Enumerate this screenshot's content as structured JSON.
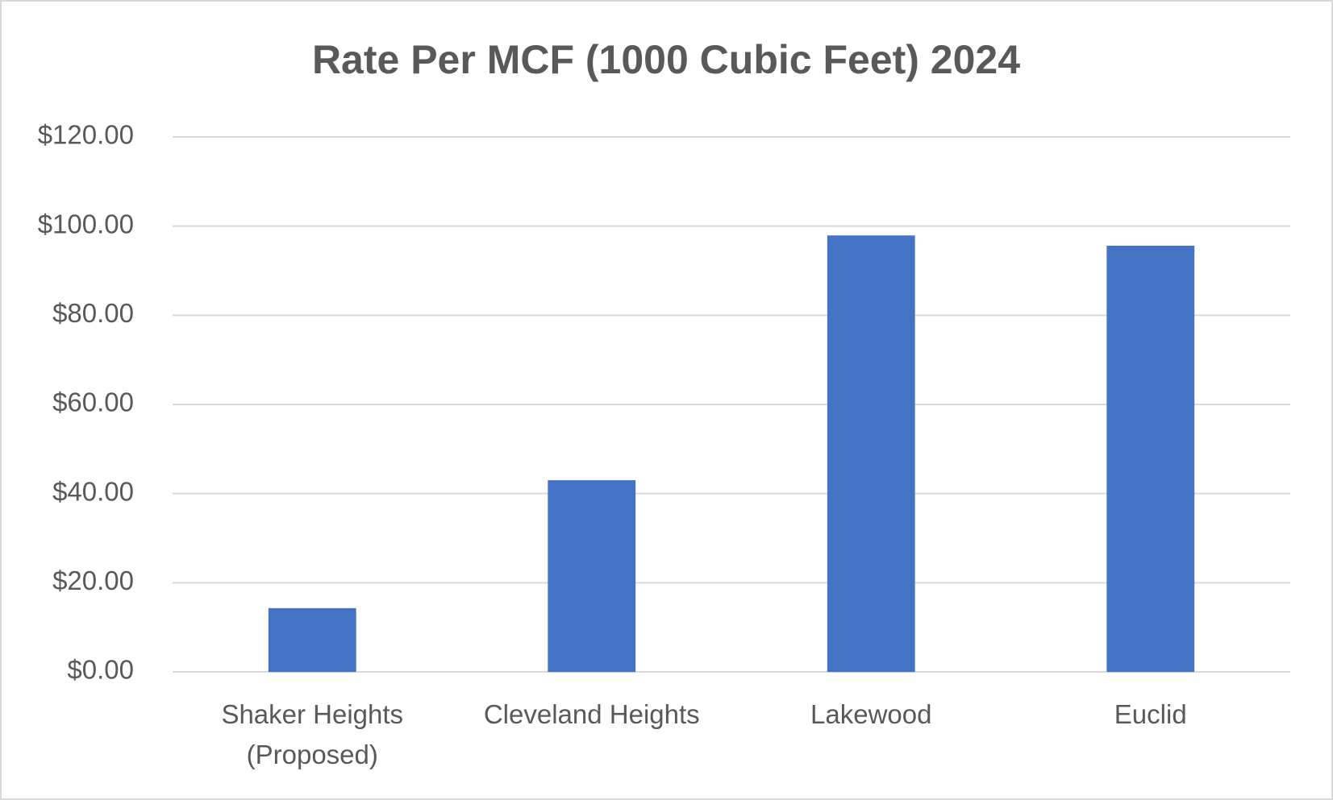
{
  "chart_data": {
    "type": "bar",
    "title": "Rate Per MCF (1000 Cubic Feet) 2024",
    "categories": [
      "Shaker Heights (Proposed)",
      "Cleveland Heights",
      "Lakewood",
      "Euclid"
    ],
    "values": [
      14.3,
      43.0,
      97.9,
      95.6
    ],
    "color": "#4472c4",
    "ylim": [
      0,
      120
    ],
    "yticks": [
      {
        "value": 0,
        "label": "$0.00"
      },
      {
        "value": 20,
        "label": "$20.00"
      },
      {
        "value": 40,
        "label": "$40.00"
      },
      {
        "value": 60,
        "label": "$60.00"
      },
      {
        "value": 80,
        "label": "$80.00"
      },
      {
        "value": 100,
        "label": "$100.00"
      },
      {
        "value": 120,
        "label": "$120.00"
      }
    ],
    "grid": true
  }
}
